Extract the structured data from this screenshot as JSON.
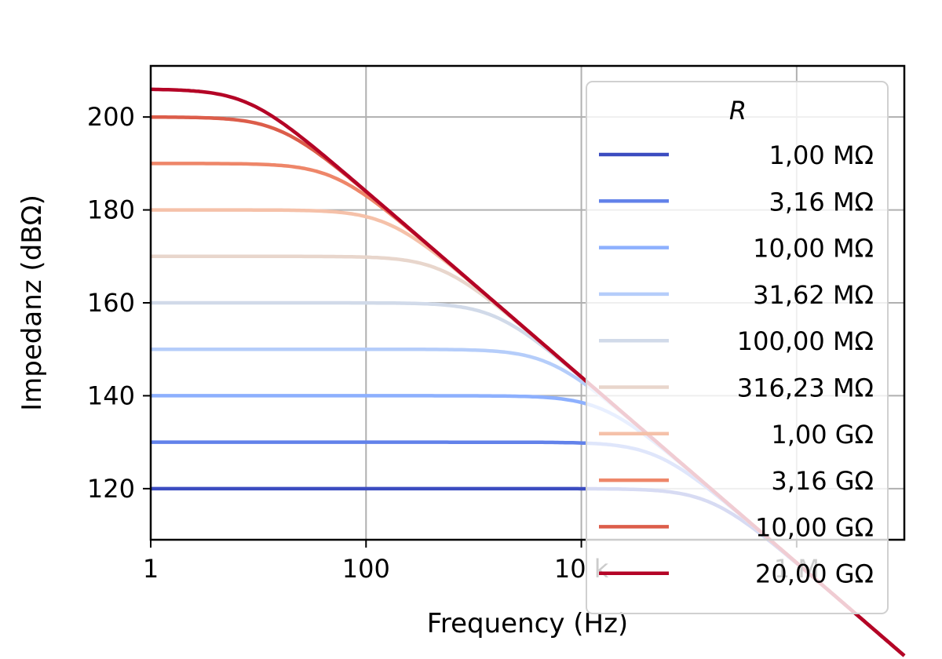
{
  "chart_data": {
    "type": "line",
    "title": "",
    "xlabel": "Frequency (Hz)",
    "ylabel": "Impedanz (dBΩ)",
    "xscale": "log",
    "xlim": [
      1,
      10000000
    ],
    "ylim": [
      109,
      211
    ],
    "xticks": [
      1,
      100,
      10000,
      1000000
    ],
    "xtick_labels": [
      "1",
      "100",
      "10 k",
      "1 M"
    ],
    "yticks": [
      120,
      140,
      160,
      180,
      200
    ],
    "yticks_labels": [
      "120",
      "140",
      "160",
      "180",
      "200"
    ],
    "grid": true,
    "legend": {
      "title": "R",
      "placement": "upper-right"
    },
    "capacitance_F": 1e-12,
    "series": [
      {
        "name": "1,00 MΩ",
        "R_ohm": 1000000.0,
        "color": "#3b4cc0"
      },
      {
        "name": "3,16 MΩ",
        "R_ohm": 3162300.0,
        "color": "#6282ea"
      },
      {
        "name": "10,00 MΩ",
        "R_ohm": 10000000.0,
        "color": "#8db0fe"
      },
      {
        "name": "31,62 MΩ",
        "R_ohm": 31623000.0,
        "color": "#b5cdfa"
      },
      {
        "name": "100,00 MΩ",
        "R_ohm": 100000000.0,
        "color": "#d1dae9"
      },
      {
        "name": "316,23 MΩ",
        "R_ohm": 316230000.0,
        "color": "#e8d6cc"
      },
      {
        "name": "1,00 GΩ",
        "R_ohm": 1000000000.0,
        "color": "#f5c1a9"
      },
      {
        "name": "3,16 GΩ",
        "R_ohm": 3162300000.0,
        "color": "#ee8669"
      },
      {
        "name": "10,00 GΩ",
        "R_ohm": 10000000000.0,
        "color": "#dc5d4a"
      },
      {
        "name": "20,00 GΩ",
        "R_ohm": 20000000000.0,
        "color": "#b40426"
      }
    ]
  }
}
